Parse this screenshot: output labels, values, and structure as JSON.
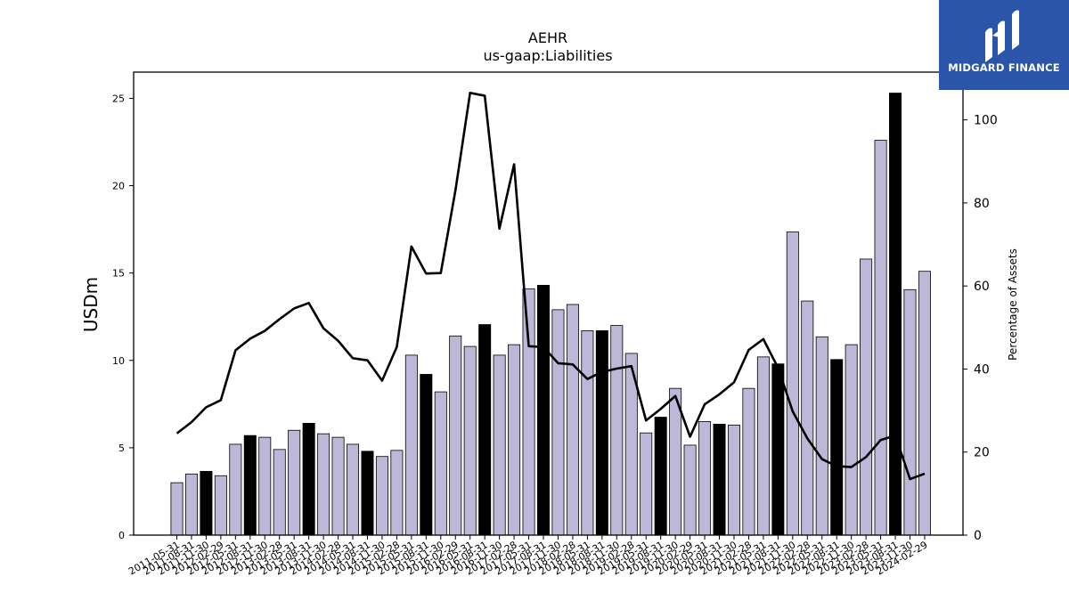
{
  "logo": {
    "text": "MIDGARD FINANCE",
    "icon": "midgard-logo-icon",
    "bg_color": "#2b55a8"
  },
  "chart_data": {
    "type": "bar",
    "title": "AEHR",
    "subtitle": "us-gaap:Liabilities",
    "ylabel": "USDm",
    "y2label": "Percentage of Assets",
    "ylim": [
      0,
      26.5
    ],
    "y2lim": [
      0,
      111.5
    ],
    "yticks": [
      0,
      5,
      10,
      15,
      20,
      25
    ],
    "y2ticks": [
      0,
      20,
      40,
      60,
      80,
      100
    ],
    "grid": false,
    "colors": {
      "bar": "#bcb8d8",
      "highlight_bar": "#000000",
      "line": "#000000"
    },
    "categories": [
      "2011-05-31",
      "2011-08-31",
      "2011-11-30",
      "2012-02-29",
      "2012-05-31",
      "2012-08-31",
      "2012-11-30",
      "2013-02-28",
      "2013-05-31",
      "2013-08-31",
      "2013-11-30",
      "2014-02-28",
      "2014-05-31",
      "2014-08-31",
      "2014-11-30",
      "2015-02-28",
      "2015-05-31",
      "2015-08-31",
      "2015-11-30",
      "2016-02-29",
      "2016-05-31",
      "2016-08-31",
      "2016-11-30",
      "2017-02-28",
      "2017-05-31",
      "2017-08-31",
      "2017-11-30",
      "2018-02-28",
      "2018-05-31",
      "2018-08-31",
      "2018-11-30",
      "2019-02-28",
      "2019-05-31",
      "2019-08-31",
      "2019-11-30",
      "2020-02-29",
      "2020-05-31",
      "2020-08-31",
      "2020-11-30",
      "2021-02-28",
      "2021-05-31",
      "2021-08-31",
      "2021-11-30",
      "2022-02-28",
      "2022-05-31",
      "2022-08-31",
      "2022-11-30",
      "2023-02-28",
      "2023-05-31",
      "2023-08-31",
      "2023-11-30",
      "2024-02-29"
    ],
    "series": [
      {
        "kind": "bar",
        "axis": "left",
        "values": [
          3.0,
          3.5,
          3.65,
          3.4,
          5.2,
          5.7,
          5.6,
          4.9,
          6.0,
          6.4,
          5.8,
          5.6,
          5.2,
          4.8,
          4.5,
          4.85,
          10.3,
          9.2,
          8.2,
          11.4,
          10.8,
          12.05,
          10.3,
          10.9,
          14.1,
          14.3,
          12.9,
          13.2,
          11.7,
          11.7,
          12.0,
          10.4,
          5.85,
          6.75,
          8.4,
          5.15,
          6.5,
          6.35,
          6.3,
          8.4,
          10.2,
          9.8,
          17.35,
          13.4,
          11.35,
          10.05,
          10.9,
          15.8,
          22.6,
          25.3,
          14.05,
          15.1
        ],
        "highlight": [
          false,
          false,
          true,
          false,
          false,
          true,
          false,
          false,
          false,
          true,
          false,
          false,
          false,
          true,
          false,
          false,
          false,
          true,
          false,
          false,
          false,
          true,
          false,
          false,
          false,
          true,
          false,
          false,
          false,
          true,
          false,
          false,
          false,
          true,
          false,
          false,
          false,
          true,
          false,
          false,
          false,
          true,
          false,
          false,
          false,
          true,
          false,
          false,
          false,
          true,
          false,
          false
        ]
      },
      {
        "kind": "line",
        "axis": "right",
        "values": [
          24.5,
          27.2,
          30.8,
          32.5,
          44.5,
          47.3,
          49.2,
          52.0,
          54.6,
          55.9,
          49.8,
          46.8,
          42.6,
          42.1,
          37.2,
          45.3,
          69.5,
          63.0,
          63.1,
          83.0,
          106.5,
          105.8,
          73.8,
          89.3,
          45.5,
          45.3,
          41.4,
          41.1,
          37.6,
          39.3,
          40.1,
          40.7,
          27.6,
          30.4,
          33.5,
          23.7,
          31.5,
          33.9,
          36.8,
          44.6,
          47.2,
          40.3,
          29.8,
          23.3,
          18.3,
          16.6,
          16.4,
          18.8,
          22.9,
          24.0,
          13.5,
          14.8
        ]
      }
    ]
  }
}
